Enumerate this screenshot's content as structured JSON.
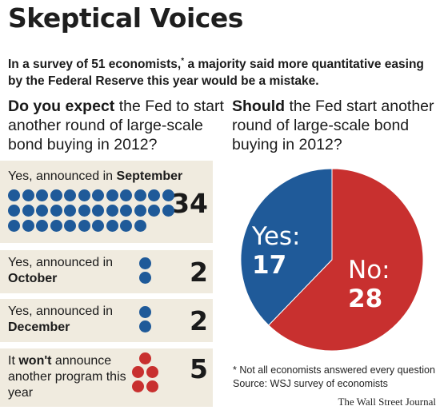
{
  "title": "Skeptical Voices",
  "subtitle_main": "In a survey of 51 economists,",
  "subtitle_mark": "*",
  "subtitle_rest": " a majority said more quantitative easing by the Federal Reserve this year would be a mistake.",
  "left_question": {
    "lead": "Do you expect",
    "rest": " the Fed to start another round of large-scale bond buying in 2012?"
  },
  "right_question": {
    "lead": "Should",
    "rest": " the Fed start another round of large-scale bond buying in 2012?"
  },
  "colors": {
    "blue": "#1f5a99",
    "red": "#c8302f",
    "panel": "#f0ebdf"
  },
  "footnote": "* Not all economists answered every question",
  "source": "Source: WSJ survey of economists",
  "credit": "The Wall Street Journal",
  "chart_data": [
    {
      "type": "bar",
      "title": "Do you expect the Fed to start another round of large-scale bond buying in 2012?",
      "categories": [
        "Yes, announced in September",
        "Yes, announced in October",
        "Yes, announced in December",
        "It won't announce another program this year"
      ],
      "values": [
        34,
        2,
        2,
        5
      ],
      "rows": [
        {
          "pre": "Yes, announced in ",
          "bold": "September",
          "post": "",
          "value": "34",
          "n": 34,
          "color": "blue"
        },
        {
          "pre": "Yes, announced in ",
          "bold": "October",
          "post": "",
          "value": "2",
          "n": 2,
          "color": "blue"
        },
        {
          "pre": "Yes, announced in ",
          "bold": "December",
          "post": "",
          "value": "2",
          "n": 2,
          "color": "blue"
        },
        {
          "pre": "It ",
          "bold": "won't",
          "post": " announce another program this year",
          "value": "5",
          "n": 5,
          "color": "red"
        }
      ]
    },
    {
      "type": "pie",
      "title": "Should the Fed start another round of large-scale bond buying in 2012?",
      "slices": [
        {
          "label": "Yes:",
          "value": 17,
          "value_text": "17",
          "color": "#1f5a99"
        },
        {
          "label": "No:",
          "value": 28,
          "value_text": "28",
          "color": "#c8302f"
        }
      ]
    }
  ]
}
